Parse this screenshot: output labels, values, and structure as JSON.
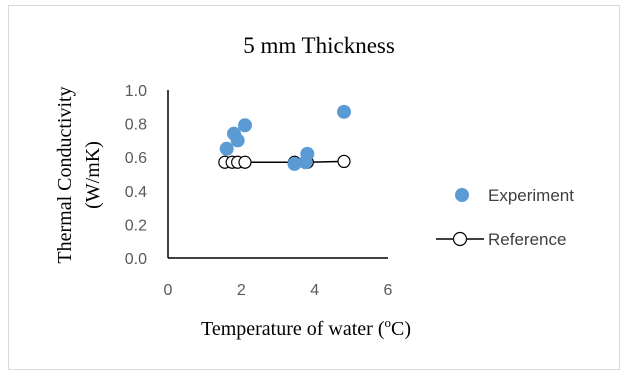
{
  "chart_data": {
    "type": "scatter",
    "title": "5 mm Thickness",
    "xlabel_main": "Temperature of water (",
    "xlabel_sup": "o",
    "xlabel_end": "C)",
    "ylabel_line1": "Thermal Conductivity",
    "ylabel_line2": "(W/mK)",
    "xlim": [
      0,
      6
    ],
    "ylim": [
      0,
      1.0
    ],
    "x_ticks": [
      "0",
      "2",
      "4",
      "6"
    ],
    "y_ticks": [
      "0.0",
      "0.2",
      "0.4",
      "0.6",
      "0.8",
      "1.0"
    ],
    "grid": false,
    "legend_position": "right",
    "series": [
      {
        "name": "Experiment",
        "style": "markers",
        "color": "#5b9bd5",
        "points": [
          [
            1.6,
            0.65
          ],
          [
            1.8,
            0.74
          ],
          [
            1.9,
            0.7
          ],
          [
            2.1,
            0.79
          ],
          [
            3.45,
            0.56
          ],
          [
            3.75,
            0.57
          ],
          [
            3.8,
            0.62
          ],
          [
            4.8,
            0.87
          ]
        ]
      },
      {
        "name": "Reference",
        "style": "line+open-markers",
        "color": "#000000",
        "points": [
          [
            1.55,
            0.57
          ],
          [
            1.75,
            0.57
          ],
          [
            1.9,
            0.57
          ],
          [
            2.1,
            0.57
          ],
          [
            3.45,
            0.57
          ],
          [
            3.8,
            0.57
          ],
          [
            4.8,
            0.575
          ]
        ]
      }
    ]
  }
}
